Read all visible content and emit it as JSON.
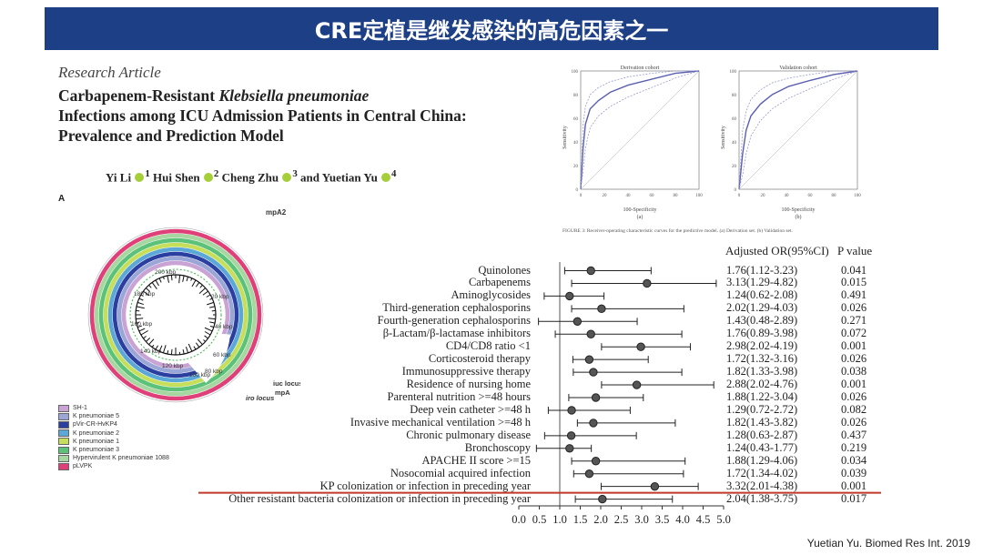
{
  "slide_title": "CRE定植是继发感染的高危因素之一",
  "paper": {
    "kind": "Research Article",
    "title_line1_pre": "Carbapenem-Resistant ",
    "title_line1_italic": "Klebsiella pneumoniae",
    "title_line2": "Infections among ICU Admission Patients in Central China:",
    "title_line3": "Prevalence and Prediction Model",
    "authors": [
      "Yi Li",
      "Hui Shen",
      "Cheng Zhu",
      "Yuetian Yu"
    ],
    "affil": [
      "1",
      "2",
      "3",
      "4"
    ],
    "panel_label": "A"
  },
  "plasmid": {
    "center_name": "mpA2",
    "kbp_labels": [
      "200 kbp",
      "20 kbp",
      "180 kbp",
      "40 kbp",
      "160 kbp",
      "60 kbp",
      "140 kbp",
      "80 kbp",
      "120 kbp",
      "100 kbp"
    ],
    "locus_labels": [
      "iuc locus",
      "iro locus",
      "mpA"
    ],
    "legend": [
      {
        "label": "SH-1",
        "color": "#c9a3d4"
      },
      {
        "label": "K pneumoniae 5",
        "color": "#9aa6d6"
      },
      {
        "label": "pVir-CR-HvKP4",
        "color": "#2b3fa0"
      },
      {
        "label": "K pneumoniae 2",
        "color": "#5aa7d8"
      },
      {
        "label": "K pneumoniae 1",
        "color": "#c6de5a"
      },
      {
        "label": "K pneumoniae 3",
        "color": "#5cc27a"
      },
      {
        "label": "Hypervirulent K pneumoniae 1088",
        "color": "#a7d7a0"
      },
      {
        "label": "pLVPK",
        "color": "#e0407a"
      }
    ]
  },
  "roc": {
    "panels": [
      {
        "title": "Derivation cohort",
        "xlabel": "100-Specificity",
        "ylabel": "Sensitivity",
        "sub": "(a)"
      },
      {
        "title": "Validation cohort",
        "xlabel": "100-Specificity",
        "ylabel": "Sensitivity",
        "sub": "(b)"
      }
    ],
    "ticks": [
      "0",
      "20",
      "40",
      "60",
      "80",
      "100"
    ],
    "caption": "FIGURE 3: Receiver-operating characteristic curves for the predictive model. (a) Derivation set. (b) Validation set."
  },
  "forest": {
    "col_or": "Adjusted OR(95%CI)",
    "col_p": "P value",
    "xticks": [
      "0.0",
      "0.5",
      "1.0",
      "1.5",
      "2.0",
      "2.5",
      "3.0",
      "3.5",
      "4.0",
      "4.5",
      "5.0"
    ]
  },
  "source": "Yuetian Yu. Biomed Res Int. 2019",
  "colors": {
    "title_bar": "#1d3f86",
    "highlight": "#c0392b"
  },
  "chart_data": [
    {
      "type": "forest",
      "xlim": [
        0,
        5
      ],
      "reference_line": 1.0,
      "rows": [
        {
          "label": "Quinolones",
          "or": 1.76,
          "lo": 1.12,
          "hi": 3.23,
          "or_text": "1.76(1.12-3.23)",
          "p": "0.041"
        },
        {
          "label": "Carbapenems",
          "or": 3.13,
          "lo": 1.29,
          "hi": 4.82,
          "or_text": "3.13(1.29-4.82)",
          "p": "0.015"
        },
        {
          "label": "Aminoglycosides",
          "or": 1.24,
          "lo": 0.62,
          "hi": 2.08,
          "or_text": "1.24(0.62-2.08)",
          "p": "0.491"
        },
        {
          "label": "Third-generation cephalosporins",
          "or": 2.02,
          "lo": 1.29,
          "hi": 4.03,
          "or_text": "2.02(1.29-4.03)",
          "p": "0.026"
        },
        {
          "label": "Fourth-generation cephalosporins",
          "or": 1.43,
          "lo": 0.48,
          "hi": 2.89,
          "or_text": "1.43(0.48-2.89)",
          "p": "0.271"
        },
        {
          "label": "β-Lactam/β-lactamase inhibitors",
          "or": 1.76,
          "lo": 0.89,
          "hi": 3.98,
          "or_text": "1.76(0.89-3.98)",
          "p": "0.072"
        },
        {
          "label": "CD4/CD8 ratio <1",
          "or": 2.98,
          "lo": 2.02,
          "hi": 4.19,
          "or_text": "2.98(2.02-4.19)",
          "p": "0.001"
        },
        {
          "label": "Corticosteroid therapy",
          "or": 1.72,
          "lo": 1.32,
          "hi": 3.16,
          "or_text": "1.72(1.32-3.16)",
          "p": "0.026"
        },
        {
          "label": "Immunosuppressive therapy",
          "or": 1.82,
          "lo": 1.33,
          "hi": 3.98,
          "or_text": "1.82(1.33-3.98)",
          "p": "0.038"
        },
        {
          "label": "Residence of nursing home",
          "or": 2.88,
          "lo": 2.02,
          "hi": 4.76,
          "or_text": "2.88(2.02-4.76)",
          "p": "0.001"
        },
        {
          "label": "Parenteral nutrition >=48 hours",
          "or": 1.88,
          "lo": 1.22,
          "hi": 3.04,
          "or_text": "1.88(1.22-3.04)",
          "p": "0.026"
        },
        {
          "label": "Deep vein catheter >=48 h",
          "or": 1.29,
          "lo": 0.72,
          "hi": 2.72,
          "or_text": "1.29(0.72-2.72)",
          "p": "0.082"
        },
        {
          "label": "Invasive mechanical ventilation >=48 h",
          "or": 1.82,
          "lo": 1.43,
          "hi": 3.82,
          "or_text": "1.82(1.43-3.82)",
          "p": "0.026"
        },
        {
          "label": "Chronic pulmonary disease",
          "or": 1.28,
          "lo": 0.63,
          "hi": 2.87,
          "or_text": "1.28(0.63-2.87)",
          "p": "0.437"
        },
        {
          "label": "Bronchoscopy",
          "or": 1.24,
          "lo": 0.43,
          "hi": 1.77,
          "or_text": "1.24(0.43-1.77)",
          "p": "0.219"
        },
        {
          "label": "APACHE II score >=15",
          "or": 1.88,
          "lo": 1.29,
          "hi": 4.06,
          "or_text": "1.88(1.29-4.06)",
          "p": "0.034"
        },
        {
          "label": "Nosocomial acquired infection",
          "or": 1.72,
          "lo": 1.34,
          "hi": 4.02,
          "or_text": "1.72(1.34-4.02)",
          "p": "0.039"
        },
        {
          "label": "KP colonization or infection in preceding year",
          "or": 3.32,
          "lo": 2.01,
          "hi": 4.38,
          "or_text": "3.32(2.01-4.38)",
          "p": "0.001"
        },
        {
          "label": "Other resistant bacteria colonization or infection in preceding year",
          "or": 2.04,
          "lo": 1.38,
          "hi": 3.75,
          "or_text": "2.04(1.38-3.75)",
          "p": "0.017"
        }
      ]
    },
    {
      "type": "line",
      "title": "Derivation cohort",
      "xlabel": "100-Specificity",
      "ylabel": "Sensitivity",
      "xlim": [
        0,
        100
      ],
      "ylim": [
        0,
        100
      ],
      "series": [
        {
          "x": [
            0,
            2,
            4,
            8,
            15,
            25,
            40,
            60,
            80,
            100
          ],
          "y": [
            0,
            35,
            55,
            68,
            75,
            82,
            88,
            93,
            98,
            100
          ]
        },
        {
          "x": [
            0,
            2,
            4,
            8,
            15,
            25,
            40,
            60,
            80,
            100
          ],
          "y": [
            0,
            55,
            70,
            80,
            86,
            91,
            95,
            98,
            100,
            100
          ]
        },
        {
          "x": [
            0,
            2,
            4,
            8,
            15,
            25,
            40,
            60,
            80,
            100
          ],
          "y": [
            0,
            15,
            35,
            52,
            62,
            70,
            78,
            86,
            94,
            100
          ]
        }
      ]
    },
    {
      "type": "line",
      "title": "Validation cohort",
      "xlabel": "100-Specificity",
      "ylabel": "Sensitivity",
      "xlim": [
        0,
        100
      ],
      "ylim": [
        0,
        100
      ],
      "series": [
        {
          "x": [
            0,
            3,
            6,
            10,
            18,
            28,
            42,
            60,
            80,
            100
          ],
          "y": [
            0,
            30,
            50,
            62,
            72,
            80,
            87,
            92,
            97,
            100
          ]
        },
        {
          "x": [
            0,
            3,
            6,
            10,
            18,
            28,
            42,
            60,
            80,
            100
          ],
          "y": [
            0,
            50,
            66,
            76,
            84,
            90,
            94,
            97,
            100,
            100
          ]
        },
        {
          "x": [
            0,
            3,
            6,
            10,
            18,
            28,
            42,
            60,
            80,
            100
          ],
          "y": [
            0,
            12,
            30,
            45,
            58,
            68,
            77,
            85,
            93,
            100
          ]
        }
      ]
    }
  ]
}
